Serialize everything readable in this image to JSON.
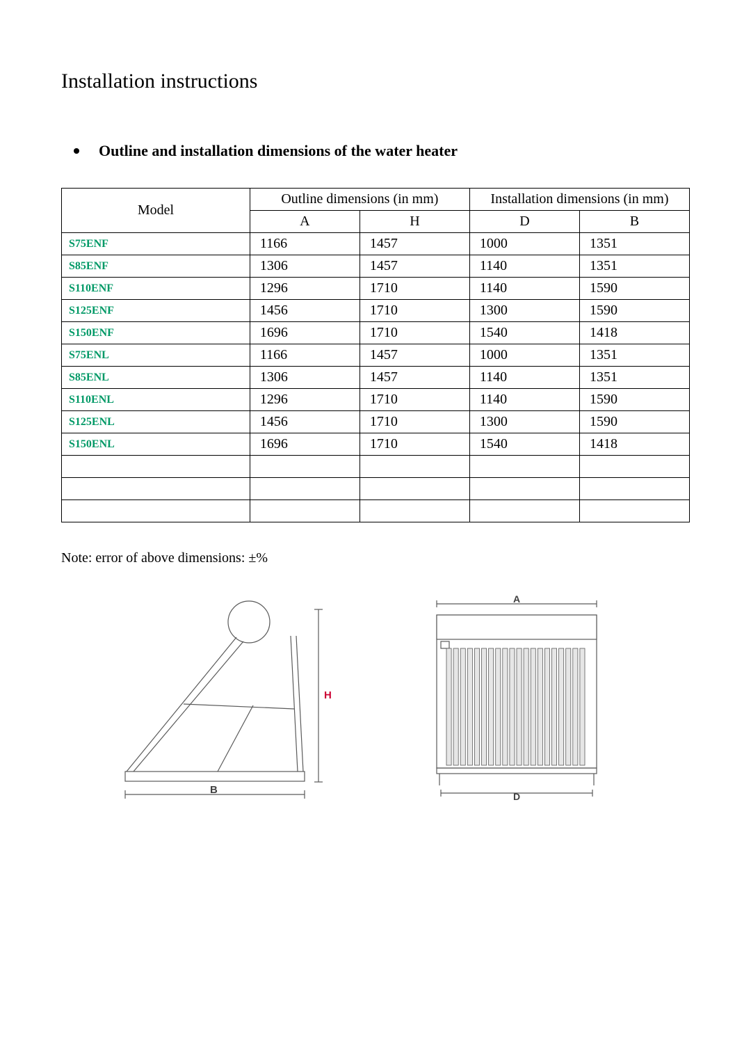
{
  "title": "Installation instructions",
  "section": "Outline and installation dimensions of the water heater",
  "note": "Note: error of above dimensions:  ±%",
  "table": {
    "head": {
      "model": "Model",
      "outline": "Outline dimensions (in mm)",
      "install": "Installation dimensions (in mm)",
      "A": "A",
      "H": "H",
      "D": "D",
      "B": "B"
    },
    "rows": [
      {
        "model": "S75ENF",
        "A": "1166",
        "H": "1457",
        "D": "1000",
        "B": "1351"
      },
      {
        "model": "S85ENF",
        "A": "1306",
        "H": "1457",
        "D": "1140",
        "B": "1351"
      },
      {
        "model": "S110ENF",
        "A": "1296",
        "H": "1710",
        "D": "1140",
        "B": "1590"
      },
      {
        "model": "S125ENF",
        "A": "1456",
        "H": "1710",
        "D": "1300",
        "B": "1590"
      },
      {
        "model": "S150ENF",
        "A": "1696",
        "H": "1710",
        "D": "1540",
        "B": "1418"
      },
      {
        "model": "S75ENL",
        "A": "1166",
        "H": "1457",
        "D": "1000",
        "B": "1351"
      },
      {
        "model": "S85ENL",
        "A": "1306",
        "H": "1457",
        "D": "1140",
        "B": "1351"
      },
      {
        "model": "S110ENL",
        "A": "1296",
        "H": "1710",
        "D": "1140",
        "B": "1590"
      },
      {
        "model": "S125ENL",
        "A": "1456",
        "H": "1710",
        "D": "1300",
        "B": "1590"
      },
      {
        "model": "S150ENL",
        "A": "1696",
        "H": "1710",
        "D": "1540",
        "B": "1418"
      }
    ],
    "empty_rows": 3,
    "model_color": "#009966"
  },
  "figures": {
    "side": {
      "labels": {
        "H": "H",
        "B": "B"
      },
      "H_color": "#cc0033",
      "stroke": "#5a5a5a",
      "text_color": "#404040"
    },
    "top": {
      "labels": {
        "A": "A",
        "D": "D"
      },
      "stroke": "#5a5a5a",
      "tube_fill": "#e6e6e6",
      "text_color": "#404040",
      "tube_count": 20
    }
  }
}
